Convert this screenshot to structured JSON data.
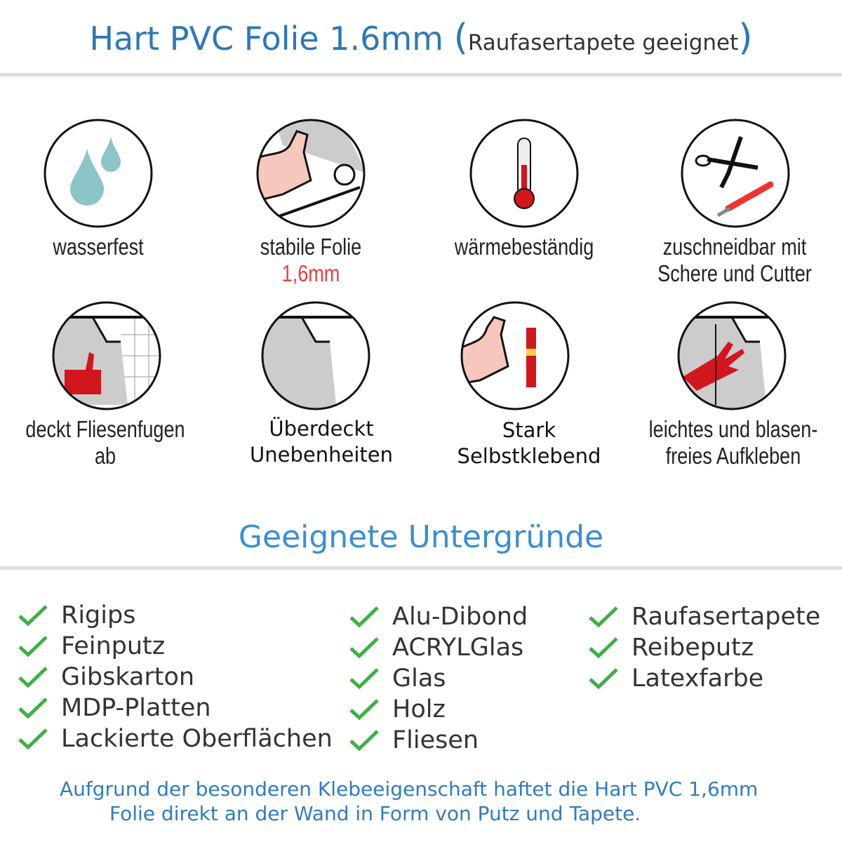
{
  "header": {
    "title": "Hart PVC Folie 1.6mm",
    "paren_open": "(",
    "subtitle": "Raufasertapete geeignet",
    "paren_close": ")"
  },
  "features": [
    {
      "icon": "water-drops-icon",
      "line1": "wasserfest"
    },
    {
      "icon": "strong-arm-foil-icon",
      "line1": "stabile Folie",
      "line2": "1,6mm"
    },
    {
      "icon": "thermometer-icon",
      "line1": "wärmebeständig"
    },
    {
      "icon": "scissors-cutter-icon",
      "line1": "zuschneidbar mit",
      "line2": "Schere und Cutter"
    },
    {
      "icon": "thumbs-up-tiles-icon",
      "line1": "deckt Fliesenfugen ab"
    },
    {
      "icon": "foil-corner-icon",
      "line1": "Überdeckt",
      "line2": "Unebenheiten"
    },
    {
      "icon": "strong-arm-glue-icon",
      "line1": "Stark",
      "line2": "Selbstklebend"
    },
    {
      "icon": "hand-smoothing-icon",
      "line1": "leichtes und blasen-",
      "line2": "freies Aufkleben"
    }
  ],
  "section": {
    "title": "Geeignete Untergründe"
  },
  "surfaces": {
    "col1": [
      "Rigips",
      "Feinputz",
      "Gibskarton",
      "MDP-Platten",
      "Lackierte Oberflächen"
    ],
    "col2": [
      "Alu-Dibond",
      "ACRYLGlas",
      "Glas",
      "Holz",
      "Fliesen"
    ],
    "col3": [
      "Raufasertapete",
      "Reibeputz",
      "Latexfarbe"
    ]
  },
  "footer": {
    "line1": "Aufgrund der besonderen Klebeeigenschaft haftet die Hart PVC 1,6mm",
    "line2": "Folie direkt an der Wand in Form von Putz und Tapete."
  },
  "colors": {
    "title": "#2b78b9",
    "accent_red": "#e84040",
    "check": "#3cb043",
    "icon_red": "#d2161e",
    "water": "#8cc5c6"
  }
}
